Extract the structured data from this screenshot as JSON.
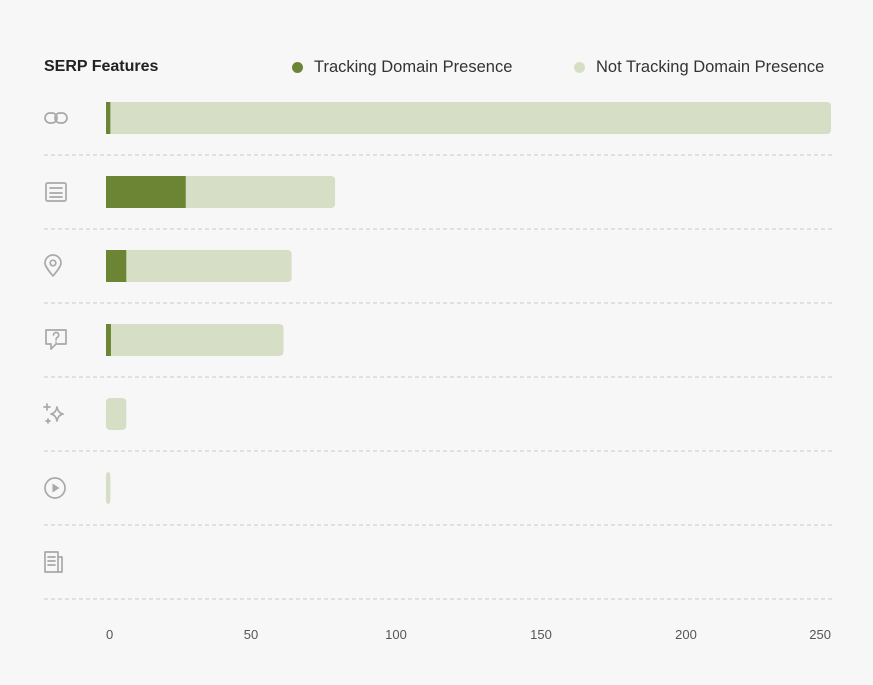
{
  "title": "SERP Features",
  "legend": {
    "tracking": {
      "label": "Tracking Domain Presence",
      "color": "#6b8535"
    },
    "not_tracking": {
      "label": "Not Tracking Domain Presence",
      "color": "#d6dfc6"
    }
  },
  "chart_data": {
    "type": "bar",
    "orientation": "horizontal",
    "stacked": true,
    "title": "SERP Features",
    "categories": [
      "link-icon",
      "article-icon",
      "location-pin-icon",
      "question-icon",
      "sparkles-icon",
      "video-play-icon",
      "news-icon"
    ],
    "series": [
      {
        "name": "Tracking Domain Presence",
        "color": "#6b8535",
        "values": [
          1.5,
          27.5,
          7,
          1.7,
          0,
          0,
          0
        ]
      },
      {
        "name": "Not Tracking Domain Presence",
        "color": "#d6dfc6",
        "values": [
          248.5,
          51.5,
          57,
          59.5,
          7,
          1.5,
          0
        ]
      }
    ],
    "x_ticks": [
      0,
      50,
      100,
      150,
      200,
      250
    ],
    "xlim": [
      0,
      250
    ],
    "grid": "dashed horizontal separators"
  }
}
